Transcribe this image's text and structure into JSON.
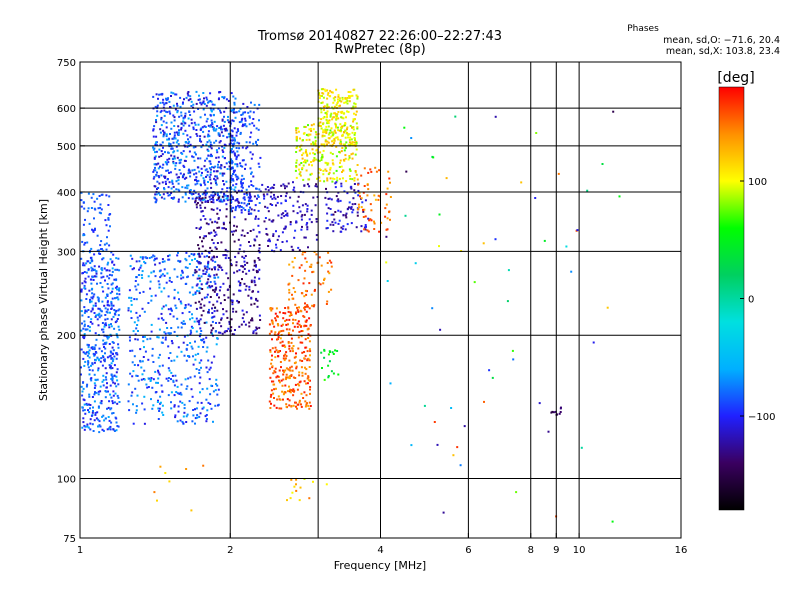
{
  "chart_data": {
    "type": "scatter",
    "title": "Tromsø 20140827 22:26:00–22:27:43",
    "subtitle": "RwPretec (8p)",
    "xlabel": "Frequency [MHz]",
    "ylabel": "Stationary phase Virtual Height [km]",
    "x_scale": "log",
    "y_scale": "log",
    "xlim": [
      1,
      16
    ],
    "ylim": [
      75,
      750
    ],
    "x_ticks": [
      1,
      2,
      4,
      6,
      8,
      9,
      10,
      16
    ],
    "x_tick_labels": [
      "1",
      "2",
      "4",
      "6",
      "8",
      "9",
      "10",
      "16"
    ],
    "x_grid": [
      2,
      3,
      4,
      6,
      8,
      9,
      10
    ],
    "y_ticks": [
      75,
      100,
      200,
      300,
      400,
      500,
      600,
      750
    ],
    "y_tick_labels": [
      "75",
      "100",
      "200",
      "300",
      "400",
      "500",
      "600",
      "750"
    ],
    "y_grid": [
      100,
      200,
      300,
      400,
      500,
      600
    ],
    "grid": true,
    "legend_title": "Phases",
    "legend_lines": [
      "mean, sd,O: −71.6, 20.4",
      "mean, sd,X: 103.8, 23.4"
    ],
    "legend_placement": "top-right",
    "colorbar": {
      "label": "[deg]",
      "min": -180,
      "max": 180,
      "ticks": [
        100,
        0,
        -100
      ],
      "tick_labels": [
        "100",
        "0",
        "−100"
      ],
      "colors": [
        "#000000",
        "#3a0060",
        "#2020ff",
        "#00b0ff",
        "#00e0e0",
        "#00d060",
        "#00ff00",
        "#ffff00",
        "#ff9000",
        "#ff0000"
      ]
    },
    "clusters": [
      {
        "f": [
          1.0,
          1.2
        ],
        "h": [
          125,
          300
        ],
        "phase": [
          -110,
          -60
        ],
        "n": 520
      },
      {
        "f": [
          1.0,
          1.15
        ],
        "h": [
          300,
          400
        ],
        "phase": [
          -100,
          -70
        ],
        "n": 70
      },
      {
        "f": [
          1.25,
          1.9
        ],
        "h": [
          130,
          300
        ],
        "phase": [
          -110,
          -55
        ],
        "n": 520
      },
      {
        "f": [
          1.4,
          2.05
        ],
        "h": [
          380,
          650
        ],
        "phase": [
          -120,
          -60
        ],
        "n": 680
      },
      {
        "f": [
          1.7,
          2.3
        ],
        "h": [
          200,
          400
        ],
        "phase": [
          -150,
          -100
        ],
        "n": 380
      },
      {
        "f": [
          2.0,
          2.3
        ],
        "h": [
          360,
          620
        ],
        "phase": [
          -110,
          -70
        ],
        "n": 180
      },
      {
        "f": [
          2.3,
          3.0
        ],
        "h": [
          300,
          420
        ],
        "phase": [
          -140,
          -95
        ],
        "n": 140
      },
      {
        "f": [
          2.4,
          2.9
        ],
        "h": [
          140,
          230
        ],
        "phase": [
          130,
          180
        ],
        "n": 320
      },
      {
        "f": [
          2.6,
          3.2
        ],
        "h": [
          230,
          300
        ],
        "phase": [
          130,
          170
        ],
        "n": 70
      },
      {
        "f": [
          2.7,
          3.6
        ],
        "h": [
          420,
          560
        ],
        "phase": [
          70,
          130
        ],
        "n": 240
      },
      {
        "f": [
          3.0,
          3.6
        ],
        "h": [
          500,
          660
        ],
        "phase": [
          80,
          130
        ],
        "n": 220
      },
      {
        "f": [
          3.1,
          3.8
        ],
        "h": [
          330,
          420
        ],
        "phase": [
          -140,
          -90
        ],
        "n": 90
      },
      {
        "f": [
          3.6,
          4.2
        ],
        "h": [
          330,
          450
        ],
        "phase": [
          120,
          170
        ],
        "n": 60
      },
      {
        "f": [
          3.0,
          3.3
        ],
        "h": [
          160,
          190
        ],
        "phase": [
          20,
          70
        ],
        "n": 20
      },
      {
        "f": [
          4.0,
          12.5
        ],
        "h": [
          80,
          620
        ],
        "phase": [
          -150,
          180
        ],
        "n": 60
      },
      {
        "f": [
          2.5,
          3.2
        ],
        "h": [
          90,
          100
        ],
        "phase": [
          90,
          150
        ],
        "n": 14
      },
      {
        "f": [
          8.8,
          9.2
        ],
        "h": [
          136,
          141
        ],
        "phase": [
          -160,
          -130
        ],
        "n": 10
      },
      {
        "f": [
          1.35,
          2.0
        ],
        "h": [
          85,
          110
        ],
        "phase": [
          100,
          160
        ],
        "n": 8
      }
    ]
  }
}
